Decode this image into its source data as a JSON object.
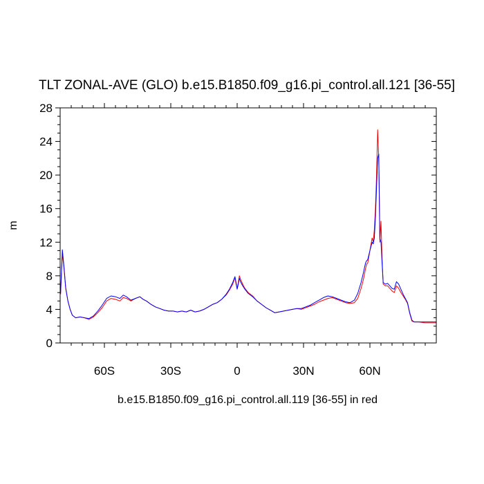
{
  "chart_data": {
    "type": "line",
    "title": "TLT ZONAL-AVE (GLO) b.e15.B1850.f09_g16.pi_control.all.121 [36-55]",
    "xlabel": "b.e15.B1850.f09_g16.pi_control.all.119 [36-55] in red",
    "ylabel": "m",
    "xlim": [
      -80,
      90
    ],
    "ylim": [
      0,
      28
    ],
    "xticks": [
      {
        "value": -60,
        "label": "60S"
      },
      {
        "value": -30,
        "label": "30S"
      },
      {
        "value": 0,
        "label": "0"
      },
      {
        "value": 30,
        "label": "30N"
      },
      {
        "value": 60,
        "label": "60N"
      }
    ],
    "yticks": [
      {
        "value": 0,
        "label": "0"
      },
      {
        "value": 4,
        "label": "4"
      },
      {
        "value": 8,
        "label": "8"
      },
      {
        "value": 12,
        "label": "12"
      },
      {
        "value": 16,
        "label": "16"
      },
      {
        "value": 20,
        "label": "20"
      },
      {
        "value": 24,
        "label": "24"
      },
      {
        "value": 28,
        "label": "28"
      }
    ],
    "grid": false,
    "series": [
      {
        "color": "#ff0000",
        "x": [
          -79.8,
          -79.0,
          -78.3,
          -77.5,
          -76.5,
          -75.5,
          -74.5,
          -73.0,
          -71.0,
          -69.0,
          -67.0,
          -65.0,
          -63.0,
          -61.0,
          -59.0,
          -57.0,
          -55.0,
          -53.0,
          -51.5,
          -50.0,
          -48.0,
          -46.0,
          -44.0,
          -42.5,
          -41.0,
          -39.0,
          -37.0,
          -35.0,
          -33.0,
          -31.0,
          -29.0,
          -27.0,
          -25.0,
          -23.0,
          -21.0,
          -19.0,
          -17.0,
          -15.0,
          -13.0,
          -11.0,
          -9.0,
          -7.0,
          -5.0,
          -3.5,
          -2.0,
          -1.0,
          -0.5,
          0.0,
          0.5,
          1.0,
          1.5,
          2.5,
          3.5,
          5.0,
          7.0,
          9.0,
          11.0,
          13.0,
          15.0,
          17.0,
          19.0,
          21.0,
          23.0,
          25.0,
          27.0,
          29.0,
          31.0,
          33.0,
          35.0,
          37.0,
          39.0,
          41.0,
          43.0,
          45.0,
          47.0,
          49.0,
          51.0,
          53.0,
          54.5,
          56.0,
          57.0,
          58.0,
          58.5,
          59.0,
          60.0,
          61.0,
          61.5,
          62.0,
          62.5,
          63.0,
          63.5,
          64.0,
          64.5,
          65.0,
          65.5,
          66.0,
          67.0,
          68.0,
          69.0,
          70.0,
          71.0,
          72.0,
          73.0,
          74.0,
          75.0,
          76.0,
          77.0,
          78.0,
          79.0,
          80.0,
          82.0,
          85.0,
          88.0,
          90.0
        ],
        "y": [
          5.8,
          10.7,
          9.0,
          6.5,
          5.0,
          4.0,
          3.3,
          3.0,
          3.1,
          3.0,
          2.8,
          3.1,
          3.6,
          4.2,
          5.0,
          5.3,
          5.2,
          5.0,
          5.4,
          5.3,
          5.0,
          5.3,
          5.5,
          5.2,
          5.0,
          4.6,
          4.3,
          4.1,
          3.9,
          3.8,
          3.8,
          3.7,
          3.8,
          3.7,
          3.9,
          3.7,
          3.8,
          4.0,
          4.3,
          4.6,
          4.8,
          5.2,
          5.7,
          6.3,
          7.0,
          7.8,
          7.0,
          6.5,
          7.2,
          8.0,
          7.6,
          7.0,
          6.5,
          6.0,
          5.6,
          5.0,
          4.6,
          4.2,
          3.9,
          3.6,
          3.7,
          3.8,
          3.9,
          4.0,
          4.1,
          4.0,
          4.2,
          4.4,
          4.6,
          4.9,
          5.1,
          5.3,
          5.4,
          5.2,
          5.0,
          4.8,
          4.7,
          4.8,
          5.3,
          6.5,
          7.5,
          8.8,
          9.4,
          9.5,
          11.0,
          12.5,
          12.0,
          13.5,
          16.0,
          20.0,
          25.4,
          22.0,
          12.0,
          14.5,
          10.0,
          7.0,
          6.8,
          6.8,
          6.5,
          6.2,
          6.0,
          6.8,
          6.5,
          6.0,
          5.6,
          5.2,
          4.7,
          3.5,
          2.6,
          2.5,
          2.5,
          2.4,
          2.4,
          2.4
        ]
      },
      {
        "color": "#0000ff",
        "x": [
          -79.8,
          -79.0,
          -78.3,
          -77.5,
          -76.5,
          -75.5,
          -74.5,
          -73.0,
          -71.0,
          -69.0,
          -67.0,
          -65.0,
          -63.0,
          -61.0,
          -59.0,
          -57.0,
          -55.0,
          -53.0,
          -51.5,
          -50.0,
          -48.0,
          -46.0,
          -44.0,
          -42.5,
          -41.0,
          -39.0,
          -37.0,
          -35.0,
          -33.0,
          -31.0,
          -29.0,
          -27.0,
          -25.0,
          -23.0,
          -21.0,
          -19.0,
          -17.0,
          -15.0,
          -13.0,
          -11.0,
          -9.0,
          -7.0,
          -5.0,
          -3.5,
          -2.0,
          -1.0,
          -0.5,
          0.0,
          0.5,
          1.0,
          1.5,
          2.5,
          3.5,
          5.0,
          7.0,
          9.0,
          11.0,
          13.0,
          15.0,
          17.0,
          19.0,
          21.0,
          23.0,
          25.0,
          27.0,
          29.0,
          31.0,
          33.0,
          35.0,
          37.0,
          39.0,
          41.0,
          43.0,
          45.0,
          47.0,
          49.0,
          51.0,
          53.0,
          54.5,
          56.0,
          57.0,
          58.0,
          58.5,
          59.0,
          60.0,
          61.0,
          61.5,
          62.0,
          62.5,
          63.0,
          63.5,
          64.0,
          64.5,
          65.0,
          65.5,
          66.0,
          67.0,
          68.0,
          69.0,
          70.0,
          71.0,
          72.0,
          73.0,
          74.0,
          75.0,
          76.0,
          77.0,
          78.0,
          79.0,
          80.0,
          82.0,
          85.0,
          88.0,
          90.0
        ],
        "y": [
          5.9,
          11.1,
          9.2,
          6.6,
          5.0,
          4.0,
          3.3,
          3.0,
          3.1,
          3.0,
          2.9,
          3.2,
          3.8,
          4.5,
          5.3,
          5.6,
          5.5,
          5.3,
          5.7,
          5.5,
          5.1,
          5.3,
          5.5,
          5.2,
          5.0,
          4.6,
          4.3,
          4.1,
          3.9,
          3.8,
          3.8,
          3.7,
          3.8,
          3.7,
          3.9,
          3.7,
          3.8,
          4.0,
          4.3,
          4.6,
          4.8,
          5.2,
          5.8,
          6.4,
          7.2,
          7.9,
          7.2,
          6.4,
          7.0,
          7.7,
          7.3,
          6.8,
          6.4,
          5.9,
          5.5,
          5.0,
          4.6,
          4.2,
          3.9,
          3.6,
          3.7,
          3.8,
          3.9,
          4.0,
          4.1,
          4.1,
          4.3,
          4.5,
          4.8,
          5.1,
          5.4,
          5.6,
          5.5,
          5.3,
          5.1,
          4.9,
          4.8,
          5.1,
          5.9,
          7.2,
          8.3,
          9.5,
          9.8,
          9.9,
          11.0,
          12.0,
          11.8,
          12.5,
          15.0,
          18.5,
          22.0,
          22.5,
          12.5,
          12.0,
          9.5,
          7.2,
          7.0,
          7.1,
          6.8,
          6.5,
          6.4,
          7.3,
          7.0,
          6.4,
          5.8,
          5.3,
          4.8,
          3.6,
          2.7,
          2.5,
          2.5,
          2.5,
          2.5,
          2.5
        ]
      }
    ]
  }
}
